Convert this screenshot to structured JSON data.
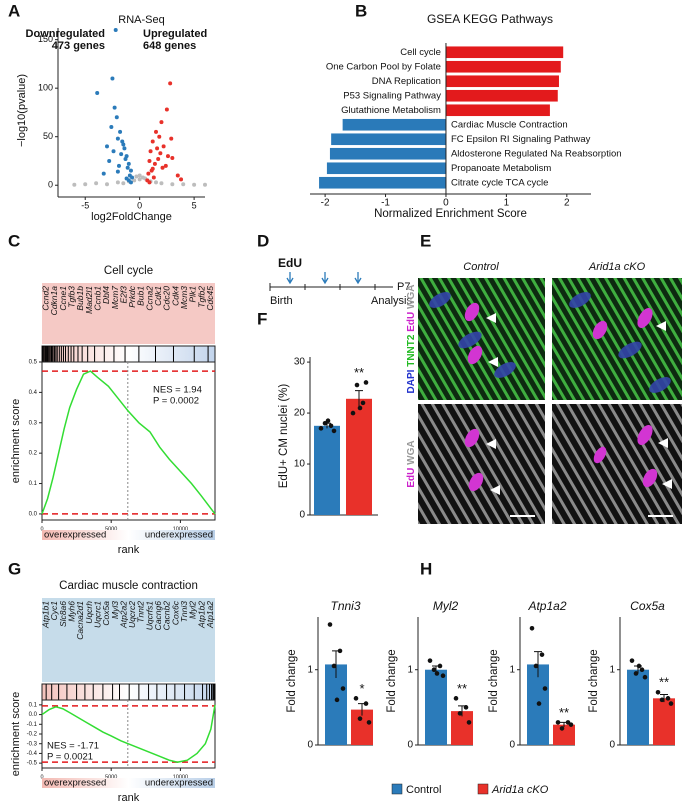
{
  "panel_labels": [
    "A",
    "B",
    "C",
    "D",
    "E",
    "F",
    "G",
    "H"
  ],
  "chart_data": [
    {
      "type": "scatter",
      "title": "RNA-Seq",
      "xlabel": "log2FoldChange",
      "ylabel": "−log10(pvalue)",
      "xlim": [
        -7.5,
        6
      ],
      "ylim": [
        -8,
        162
      ],
      "xticks": [
        -5,
        0,
        5
      ],
      "yticks": [
        0,
        50,
        100,
        150
      ],
      "series": [
        {
          "color": "#bdbdbd",
          "x": [
            -5,
            -4,
            -3,
            -2,
            -1,
            0,
            1,
            2,
            3,
            4,
            5,
            -0.5,
            0.5,
            -0.3,
            0.3,
            -6,
            6,
            -1.5,
            1.5,
            0
          ],
          "values": [
            1,
            2,
            1,
            3,
            4,
            6,
            4,
            2,
            1,
            1,
            0.5,
            5,
            7,
            9,
            8,
            0.5,
            0.5,
            2,
            3,
            10
          ]
        },
        {
          "name": "Downregulated",
          "count_label": "473 genes",
          "color": "#2b7bba",
          "x": [
            -3.9,
            -2.2,
            -2.5,
            -2.3,
            -2.6,
            -1.8,
            -2.0,
            -1.5,
            -1.2,
            -1.0,
            -0.8,
            -1.4,
            -2.8,
            -3.0,
            -1.7,
            -2.1,
            -1.1,
            -0.9,
            -1.3,
            -1.6,
            -2.4,
            -0.7,
            -1.9,
            -3.3,
            -1.0,
            -0.8,
            -1.2,
            -2.0
          ],
          "values": [
            95,
            160,
            110,
            80,
            60,
            55,
            48,
            42,
            30,
            22,
            15,
            38,
            25,
            40,
            32,
            70,
            18,
            10,
            27,
            45,
            35,
            8,
            20,
            12,
            5,
            3,
            7,
            14
          ]
        },
        {
          "name": "Upregulated",
          "count_label": "648 genes",
          "color": "#e8312a",
          "x": [
            2.8,
            2.5,
            1.5,
            2.0,
            1.2,
            1.8,
            2.2,
            1.0,
            0.9,
            2.6,
            3.0,
            1.4,
            1.6,
            0.8,
            2.4,
            1.1,
            3.5,
            1.9,
            1.3,
            0.7,
            2.1,
            1.7,
            0.9,
            1.2,
            2.9,
            3.8
          ],
          "values": [
            105,
            78,
            55,
            65,
            45,
            50,
            40,
            35,
            25,
            30,
            28,
            22,
            38,
            12,
            20,
            15,
            10,
            33,
            8,
            5,
            18,
            27,
            3,
            17,
            48,
            6
          ]
        }
      ]
    },
    {
      "type": "barh",
      "title": "GSEA KEGG Pathways",
      "xlabel": "Normalized Enrichment Score",
      "categories": [
        "Cell cycle",
        "One Carbon Pool by Folate",
        "DNA Replication",
        "P53 Signaling Pathway",
        "Glutathione Metabolism",
        "Cardiac Muscle Contraction",
        "FC Epsilon RI Signaling Pathway",
        "Aldosterone Regulated Na Reabsorption",
        "Propanoate Metabolism",
        "Citrate cycle TCA cycle"
      ],
      "values": [
        1.94,
        1.9,
        1.87,
        1.85,
        1.72,
        -1.71,
        -1.9,
        -1.92,
        -1.97,
        -2.1
      ],
      "colors": [
        "#e31a1c",
        "#e31a1c",
        "#e31a1c",
        "#e31a1c",
        "#e31a1c",
        "#2a7ab9",
        "#2a7ab9",
        "#2a7ab9",
        "#2a7ab9",
        "#2a7ab9"
      ],
      "xlim": [
        -2.25,
        2.4
      ],
      "xticks": [
        -2,
        -1,
        0,
        1,
        2
      ]
    },
    {
      "type": "gsea",
      "title": "Cell cycle",
      "ylabel": "enrichment score",
      "xlabel": "rank",
      "genes": [
        "Ccnd2",
        "Cdkn1a",
        "Ccne1",
        "Tgfb3",
        "Bub1b",
        "Mad2l1",
        "Ccnb1",
        "Dbf4",
        "Mcm7",
        "E2f3",
        "Prkdc",
        "Bub1",
        "Ccna2",
        "Cdk1",
        "Cdc20",
        "Cdk4",
        "Mcm3",
        "Plk1",
        "Tgfb2",
        "Cdc45"
      ],
      "gene_box_color": "#f5c9c5",
      "color": "#33dd33",
      "annotations": [
        "NES = 1.94",
        "P = 0.0002"
      ],
      "annotation_corner": "upper right",
      "bands": [
        "overexpressed",
        "underexpressed"
      ],
      "x": [
        0,
        400,
        800,
        1200,
        1600,
        2000,
        2500,
        3000,
        3500,
        4000,
        4800,
        5500,
        6200,
        7000,
        7800,
        8500,
        9200,
        10000,
        10800,
        11500,
        12000,
        12500
      ],
      "values": [
        0,
        0.05,
        0.12,
        0.2,
        0.28,
        0.35,
        0.41,
        0.46,
        0.47,
        0.45,
        0.42,
        0.38,
        0.34,
        0.3,
        0.27,
        0.22,
        0.18,
        0.14,
        0.1,
        0.06,
        0.03,
        0.0
      ],
      "hits": [
        50,
        120,
        200,
        260,
        330,
        400,
        480,
        560,
        650,
        720,
        800,
        900,
        1000,
        1100,
        1250,
        1400,
        1550,
        1700,
        1900,
        2100,
        2300,
        2600,
        2900,
        3300,
        3800,
        4500,
        5200,
        6000,
        7000,
        8200,
        9500,
        11000,
        12000
      ],
      "ref_lines": [
        0.47,
        0
      ],
      "zero_cross": 6200,
      "xlim": [
        0,
        12500
      ],
      "ylim": [
        -0.02,
        0.5
      ],
      "xticks": [
        0,
        5000,
        10000
      ],
      "yticks": [
        {
          "value": 0,
          "label": "0.0"
        },
        0.1,
        0.2,
        0.3,
        0.4,
        0.5
      ]
    },
    {
      "type": "dotbar",
      "ylabel": "EdU+ CM nuclei (%)",
      "significance": "**",
      "ylim": [
        0,
        31
      ],
      "yticks": [
        0,
        10,
        20,
        30
      ],
      "bars": [
        {
          "color": "#2b7bba",
          "value": 17.5,
          "error": 0.5,
          "points": [
            17,
            17.5,
            18,
            16.5,
            18.5
          ]
        },
        {
          "color": "#e8312a",
          "value": 22.8,
          "error": 1.6,
          "points": [
            20,
            22,
            25.5,
            26,
            21
          ]
        }
      ]
    },
    {
      "type": "gsea",
      "title": "Cardiac muscle contraction",
      "ylabel": "enrichment score",
      "xlabel": "rank",
      "genes": [
        "Atp1b1",
        "Cyc1",
        "Slc8a6",
        "Myh6",
        "Cacna2d1",
        "Uqcrh",
        "Uqcrc1",
        "Cox5a",
        "Myl3",
        "Atp2a2",
        "Uqcrc2",
        "Tnnt2",
        "Uqcrfs1",
        "Cacng6",
        "Cacnb2",
        "Cox6c",
        "Tnni3",
        "Myl2",
        "Atp1b2",
        "Atp1a2"
      ],
      "gene_box_color": "#c6dcea",
      "color": "#33dd33",
      "annotations": [
        "NES = -1.71",
        "P = 0.0021"
      ],
      "annotation_corner": "lower left",
      "bands": [
        "overexpressed",
        "underexpressed"
      ],
      "x": [
        0,
        500,
        1000,
        1500,
        2000,
        2600,
        3200,
        3800,
        4400,
        5000,
        5700,
        6400,
        7100,
        7800,
        8500,
        9200,
        9800,
        10500,
        11200,
        11800,
        12200,
        12500
      ],
      "values": [
        0,
        0.05,
        0.08,
        0.06,
        0.02,
        -0.03,
        -0.08,
        -0.13,
        -0.18,
        -0.22,
        -0.27,
        -0.31,
        -0.35,
        -0.39,
        -0.43,
        -0.47,
        -0.49,
        -0.47,
        -0.4,
        -0.3,
        -0.15,
        0.1
      ],
      "hits": [
        300,
        700,
        1200,
        1800,
        2500,
        3100,
        3700,
        4400,
        5100,
        5600,
        6300,
        7000,
        7700,
        8300,
        9000,
        9600,
        10300,
        11000,
        11600,
        11900,
        12100,
        12250,
        12350,
        12420,
        12480
      ],
      "ref_lines": [
        0.09,
        -0.49
      ],
      "zero_cross": 6200,
      "xlim": [
        0,
        12500
      ],
      "ylim": [
        -0.55,
        0.15
      ],
      "xticks": [
        0,
        5000,
        10000
      ],
      "yticks": [
        0.1,
        {
          "value": 0,
          "label": "0.0"
        },
        -0.1,
        -0.2,
        -0.3,
        -0.4,
        -0.5
      ]
    },
    {
      "type": "dotbar",
      "title": "Tnni3",
      "ylabel": "Fold change",
      "significance": "*",
      "ylim": [
        0,
        1.7
      ],
      "yticks": [
        0,
        1
      ],
      "bars": [
        {
          "color": "#2b7bba",
          "value": 1.07,
          "error": 0.18,
          "points": [
            1.6,
            1.25,
            1.05,
            0.75,
            0.6
          ]
        },
        {
          "color": "#e8312a",
          "value": 0.47,
          "error": 0.08,
          "points": [
            0.62,
            0.55,
            0.35,
            0.3
          ]
        }
      ]
    },
    {
      "type": "dotbar",
      "title": "Myl2",
      "ylabel": "Fold change",
      "significance": "**",
      "ylim": [
        0,
        1.7
      ],
      "yticks": [
        0,
        1
      ],
      "bars": [
        {
          "color": "#2b7bba",
          "value": 1.0,
          "error": 0.05,
          "points": [
            1.12,
            1.05,
            1.0,
            0.92,
            0.95
          ]
        },
        {
          "color": "#e8312a",
          "value": 0.45,
          "error": 0.07,
          "points": [
            0.62,
            0.5,
            0.42,
            0.3
          ]
        }
      ]
    },
    {
      "type": "dotbar",
      "title": "Atp1a2",
      "ylabel": "Fold change",
      "significance": "**",
      "ylim": [
        0,
        1.7
      ],
      "yticks": [
        0,
        1
      ],
      "bars": [
        {
          "color": "#2b7bba",
          "value": 1.07,
          "error": 0.17,
          "points": [
            1.55,
            1.2,
            1.05,
            0.75,
            0.55
          ]
        },
        {
          "color": "#e8312a",
          "value": 0.27,
          "error": 0.03,
          "points": [
            0.3,
            0.3,
            0.22,
            0.27
          ]
        }
      ]
    },
    {
      "type": "dotbar",
      "title": "Cox5a",
      "ylabel": "Fold change",
      "significance": "**",
      "ylim": [
        0,
        1.7
      ],
      "yticks": [
        0,
        1
      ],
      "bars": [
        {
          "color": "#2b7bba",
          "value": 1.0,
          "error": 0.05,
          "points": [
            1.12,
            1.0,
            0.95,
            0.9,
            1.05
          ]
        },
        {
          "color": "#e8312a",
          "value": 0.62,
          "error": 0.05,
          "points": [
            0.7,
            0.62,
            0.6,
            0.55
          ]
        }
      ]
    }
  ],
  "timeline": {
    "marker": "EdU",
    "start": "Birth",
    "end": "P7",
    "end_note": "Analysis"
  },
  "images": {
    "columns": [
      "Control",
      "Arid1a cKO"
    ],
    "rows": [
      [
        {
          "text": "DAPI",
          "color": "#2233cc"
        },
        {
          "text": "TNNT2",
          "color": "#22bb22"
        },
        {
          "text": "EdU",
          "color": "#cc22cc"
        },
        {
          "text": "WGA",
          "color": "#999999"
        }
      ],
      [
        {
          "text": "EdU",
          "color": "#cc22cc"
        },
        {
          "text": "WGA",
          "color": "#999999"
        }
      ]
    ]
  },
  "legend": [
    {
      "name": "Control",
      "color": "#2b7bba"
    },
    {
      "name": "Arid1a cKO",
      "color": "#e8312a"
    }
  ]
}
